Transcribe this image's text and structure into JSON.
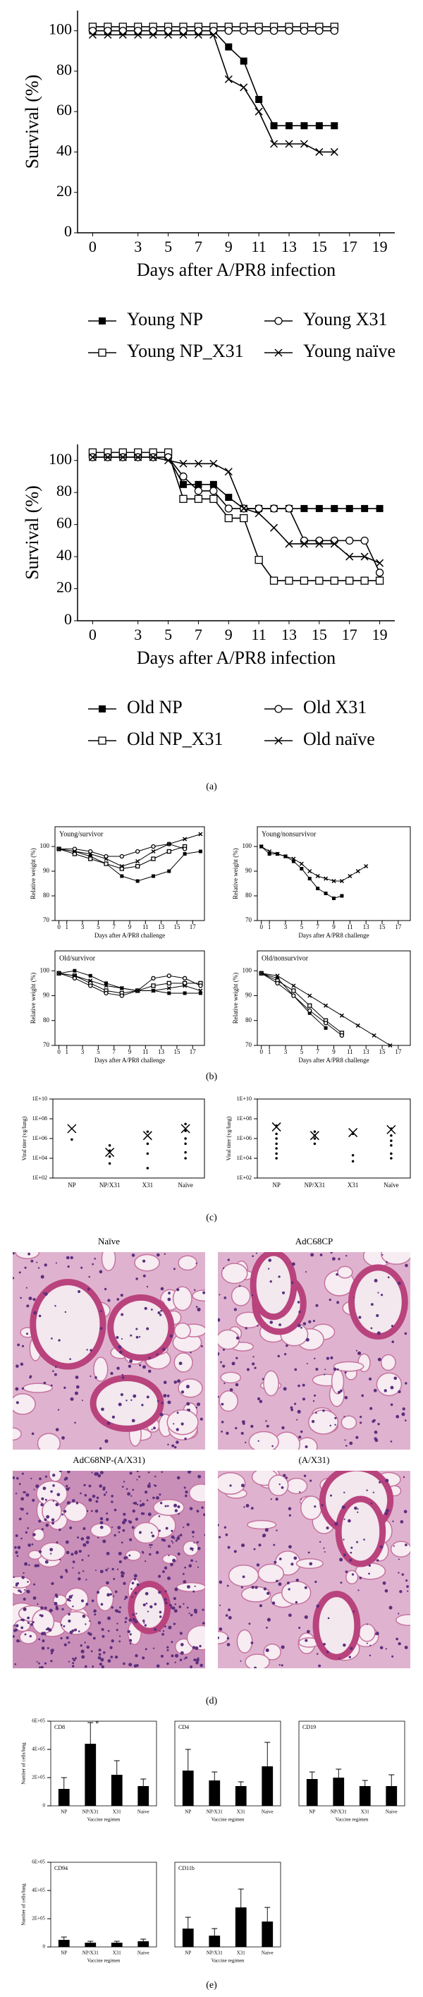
{
  "panel_labels": [
    "(a)",
    "(b)",
    "(c)",
    "(d)",
    "(e)"
  ],
  "micrographs": [
    "Naïve",
    "AdC68CP",
    "AdC68NP-(A/X31)",
    "(A/X31)"
  ],
  "chart_data": [
    {
      "type": "line",
      "xlabel": "Days after A/PR8 infection",
      "ylabel": "Survival (%)",
      "x": [
        0,
        1,
        2,
        3,
        4,
        5,
        6,
        7,
        8,
        9,
        10,
        11,
        12,
        13,
        14,
        15,
        16
      ],
      "xlim": [
        -1,
        20
      ],
      "xticks": [
        0,
        3,
        5,
        7,
        9,
        11,
        13,
        15,
        17,
        19
      ],
      "ylim": [
        0,
        110
      ],
      "yticks": [
        0,
        20,
        40,
        60,
        80,
        100
      ],
      "legend": "bottom",
      "series": [
        {
          "name": "Young NP",
          "marker": "square-filled",
          "color": "#000000",
          "values": [
            100,
            100,
            100,
            100,
            100,
            100,
            100,
            100,
            100,
            92,
            85,
            66,
            53,
            53,
            53,
            53,
            53
          ]
        },
        {
          "name": "Young NP_X31",
          "marker": "square-open",
          "color": "#000000",
          "values": [
            102,
            102,
            102,
            102,
            102,
            102,
            102,
            102,
            102,
            102,
            102,
            102,
            102,
            102,
            102,
            102,
            102
          ]
        },
        {
          "name": "Young X31",
          "marker": "circle",
          "color": "#000000",
          "values": [
            100,
            100,
            100,
            100,
            100,
            100,
            100,
            100,
            100,
            100,
            100,
            100,
            100,
            100,
            100,
            100,
            100
          ]
        },
        {
          "name": "Young naïve",
          "marker": "x",
          "color": "#000000",
          "values": [
            98,
            98,
            98,
            98,
            98,
            98,
            98,
            98,
            98,
            76,
            72,
            60,
            44,
            44,
            44,
            40,
            40
          ]
        }
      ]
    },
    {
      "type": "line",
      "xlabel": "Days after A/PR8 infection",
      "ylabel": "Survival (%)",
      "x": [
        0,
        1,
        2,
        3,
        4,
        5,
        6,
        7,
        8,
        9,
        10,
        11,
        12,
        13,
        14,
        15,
        16,
        17,
        18,
        19
      ],
      "xlim": [
        -1,
        20
      ],
      "xticks": [
        0,
        3,
        5,
        7,
        9,
        11,
        13,
        15,
        17,
        19
      ],
      "ylim": [
        0,
        110
      ],
      "yticks": [
        0,
        20,
        40,
        60,
        80,
        100
      ],
      "legend": "bottom",
      "series": [
        {
          "name": "Old NP",
          "marker": "square-filled",
          "color": "#000000",
          "values": [
            102,
            102,
            102,
            102,
            102,
            102,
            85,
            85,
            85,
            77,
            70,
            70,
            70,
            70,
            70,
            70,
            70,
            70,
            70,
            70
          ]
        },
        {
          "name": "Old NP_X31",
          "marker": "square-open",
          "color": "#000000",
          "values": [
            105,
            105,
            105,
            105,
            105,
            105,
            76,
            76,
            76,
            64,
            64,
            38,
            25,
            25,
            25,
            25,
            25,
            25,
            25,
            25
          ]
        },
        {
          "name": "Old X31",
          "marker": "circle",
          "color": "#000000",
          "values": [
            102,
            102,
            102,
            102,
            102,
            102,
            90,
            81,
            81,
            70,
            70,
            70,
            70,
            70,
            50,
            50,
            50,
            50,
            50,
            30
          ]
        },
        {
          "name": "Old naïve",
          "marker": "x",
          "color": "#000000",
          "values": [
            102,
            102,
            102,
            102,
            102,
            100,
            98,
            98,
            98,
            93,
            70,
            67,
            58,
            48,
            48,
            48,
            48,
            40,
            40,
            36
          ]
        }
      ]
    },
    {
      "type": "line",
      "title": "Young/survivor",
      "xlabel": "Days after A/PR8 challenge",
      "ylabel": "Relative weight (%)",
      "x": [
        0,
        2,
        4,
        6,
        8,
        10,
        12,
        14,
        16,
        18
      ],
      "xlim": [
        -0.5,
        18.5
      ],
      "xticks": [
        0,
        1,
        3,
        5,
        7,
        9,
        11,
        13,
        15,
        17
      ],
      "ylim": [
        70,
        108
      ],
      "yticks": [
        70,
        80,
        90,
        100
      ],
      "series": [
        {
          "marker": "square-filled",
          "color": "#000000",
          "values": [
            99,
            98,
            96,
            93,
            88,
            86,
            88,
            90,
            97,
            98
          ]
        },
        {
          "marker": "square-open",
          "color": "#000000",
          "values": [
            99,
            97,
            95,
            93,
            91,
            92,
            95,
            98,
            100,
            null
          ]
        },
        {
          "marker": "circle",
          "color": "#000000",
          "values": [
            99,
            99,
            98,
            96,
            96,
            98,
            100,
            101,
            99,
            null
          ]
        },
        {
          "marker": "x",
          "color": "#000000",
          "values": [
            99,
            98,
            97,
            95,
            92,
            94,
            98,
            101,
            103,
            105
          ]
        }
      ]
    },
    {
      "type": "line",
      "title": "Young/nonsurvivor",
      "xlabel": "Days after A/PR8 challenge",
      "ylabel": "Relative weight (%)",
      "x": [
        0,
        1,
        2,
        3,
        4,
        5,
        6,
        7,
        8,
        9,
        10,
        11,
        12,
        13
      ],
      "xlim": [
        -0.5,
        18.5
      ],
      "xticks": [
        0,
        1,
        3,
        5,
        7,
        9,
        11,
        13,
        15,
        17
      ],
      "ylim": [
        70,
        108
      ],
      "yticks": [
        70,
        80,
        90,
        100
      ],
      "series": [
        {
          "marker": "square-filled",
          "color": "#000000",
          "values": [
            100,
            97,
            97,
            96,
            94,
            91,
            87,
            83,
            81,
            79,
            80,
            null,
            null,
            null
          ]
        },
        {
          "marker": "x",
          "color": "#000000",
          "values": [
            100,
            98,
            97,
            96,
            95,
            93,
            90,
            88,
            87,
            86,
            86,
            88,
            90,
            92
          ]
        }
      ]
    },
    {
      "type": "line",
      "title": "Old/survivor",
      "xlabel": "Days after A/PR8 challenge",
      "ylabel": "Relative weight (%)",
      "x": [
        0,
        2,
        4,
        6,
        8,
        10,
        12,
        14,
        16,
        18
      ],
      "xlim": [
        -0.5,
        18.5
      ],
      "xticks": [
        0,
        1,
        3,
        5,
        7,
        9,
        11,
        13,
        15,
        17
      ],
      "ylim": [
        70,
        108
      ],
      "yticks": [
        70,
        80,
        90,
        100
      ],
      "series": [
        {
          "marker": "square-filled",
          "color": "#000000",
          "values": [
            99,
            100,
            98,
            95,
            93,
            92,
            92,
            91,
            91,
            91
          ]
        },
        {
          "marker": "square-open",
          "color": "#000000",
          "values": [
            99,
            98,
            95,
            92,
            91,
            92,
            94,
            95,
            95,
            95
          ]
        },
        {
          "marker": "circle",
          "color": "#000000",
          "values": [
            99,
            97,
            94,
            91,
            90,
            92,
            97,
            98,
            97,
            94
          ]
        },
        {
          "marker": "x",
          "color": "#000000",
          "values": [
            99,
            98,
            96,
            94,
            93,
            92,
            92,
            93,
            94,
            92
          ]
        }
      ]
    },
    {
      "type": "line",
      "title": "Old/nonsurvivor",
      "xlabel": "Days after A/PR8 challenge",
      "ylabel": "Relative weight (%)",
      "x": [
        0,
        2,
        4,
        6,
        8,
        10,
        12,
        14,
        16,
        18
      ],
      "xlim": [
        -0.5,
        18.5
      ],
      "xticks": [
        0,
        1,
        3,
        5,
        7,
        9,
        11,
        13,
        15,
        17
      ],
      "ylim": [
        70,
        108
      ],
      "yticks": [
        70,
        80,
        90,
        100
      ],
      "series": [
        {
          "marker": "square-filled",
          "color": "#000000",
          "values": [
            99,
            97,
            90,
            83,
            77,
            null,
            null,
            null,
            null,
            null
          ]
        },
        {
          "marker": "square-open",
          "color": "#000000",
          "values": [
            99,
            96,
            92,
            86,
            80,
            75,
            null,
            null,
            null,
            null
          ]
        },
        {
          "marker": "circle",
          "color": "#000000",
          "values": [
            99,
            95,
            90,
            84,
            79,
            74,
            null,
            null,
            null,
            null
          ]
        },
        {
          "marker": "x",
          "color": "#000000",
          "values": [
            99,
            98,
            94,
            90,
            86,
            82,
            78,
            74,
            70,
            null
          ]
        }
      ]
    },
    {
      "type": "scatter",
      "log": true,
      "ylabel": "Viral titer (vg/lung)",
      "categories": [
        "NP",
        "NP/X31",
        "X31",
        "Naïve"
      ],
      "ylim": [
        100,
        10000000000
      ],
      "yticks": [
        {
          "value": 100,
          "label": "1E+02"
        },
        {
          "value": 10000,
          "label": "1E+04"
        },
        {
          "value": 1000000,
          "label": "1E+06"
        },
        {
          "value": 100000000,
          "label": "1E+08"
        },
        {
          "value": 10000000000,
          "label": "1E+10"
        }
      ],
      "series": [
        {
          "marker": "dot",
          "color": "#000000",
          "x": [
            "NP",
            "NP/X31",
            "NP/X31",
            "NP/X31",
            "NP/X31",
            "X31",
            "X31",
            "X31",
            "X31",
            "Naïve",
            "Naïve",
            "Naïve",
            "Naïve",
            "Naïve",
            "Naïve"
          ],
          "values": [
            800000,
            200000,
            60000,
            15000,
            3000,
            5000000,
            300000,
            30000,
            1000,
            30000000,
            6000000,
            1000000,
            300000,
            40000,
            10000
          ]
        },
        {
          "marker": "x",
          "color": "#000000",
          "x": [
            "NP",
            "NP/X31",
            "X31",
            "Naïve"
          ],
          "values": [
            10000000,
            40000,
            2000000,
            10000000
          ]
        }
      ]
    },
    {
      "type": "scatter",
      "log": true,
      "ylabel": "Viral titer (vg/lung)",
      "categories": [
        "NP",
        "NP/X31",
        "X31",
        "Naïve"
      ],
      "ylim": [
        100,
        10000000000
      ],
      "yticks": [
        {
          "value": 100,
          "label": "1E+02"
        },
        {
          "value": 10000,
          "label": "1E+04"
        },
        {
          "value": 1000000,
          "label": "1E+06"
        },
        {
          "value": 100000000,
          "label": "1E+08"
        },
        {
          "value": 10000000000,
          "label": "1E+10"
        }
      ],
      "series": [
        {
          "marker": "dot",
          "color": "#000000",
          "x": [
            "NP",
            "NP",
            "NP",
            "NP",
            "NP",
            "NP",
            "NP",
            "NP/X31",
            "NP/X31",
            "NP/X31",
            "NP/X31",
            "X31",
            "X31",
            "X31",
            "Naïve",
            "Naïve",
            "Naïve",
            "Naïve",
            "Naïve",
            "Naïve"
          ],
          "values": [
            20000000,
            3000000,
            1000000,
            300000,
            100000,
            30000,
            10000,
            5000000,
            2000000,
            1000000,
            300000,
            3000000,
            20000,
            5000,
            10000000,
            2000000,
            600000,
            200000,
            30000,
            10000
          ]
        },
        {
          "marker": "x",
          "color": "#000000",
          "x": [
            "NP",
            "NP/X31",
            "X31",
            "Naïve"
          ],
          "values": [
            15000000,
            2000000,
            4000000,
            8000000
          ]
        }
      ]
    },
    {
      "type": "bar",
      "title": "CD8",
      "annotation": "*",
      "xlabel": "Vaccine regimen",
      "ylabel": "Number of cells/lung",
      "categories": [
        "NP",
        "NP/X31",
        "X31",
        "Naive"
      ],
      "color": "#000000",
      "values": [
        120000,
        440000,
        220000,
        140000
      ],
      "errors": [
        80000,
        150000,
        100000,
        50000
      ],
      "ylim": [
        0,
        600000
      ],
      "yticks": [
        {
          "value": 0,
          "label": "0"
        },
        {
          "value": 200000,
          "label": "2E+05"
        },
        {
          "value": 400000,
          "label": "4E+05"
        },
        {
          "value": 600000,
          "label": "6E+05"
        }
      ]
    },
    {
      "type": "bar",
      "title": "CD4",
      "xlabel": "Vaccine regimen",
      "categories": [
        "NP",
        "NP/X31",
        "X31",
        "Naive"
      ],
      "color": "#000000",
      "values": [
        250000,
        180000,
        140000,
        280000
      ],
      "errors": [
        150000,
        60000,
        30000,
        170000
      ],
      "ylim": [
        0,
        600000
      ]
    },
    {
      "type": "bar",
      "title": "CD19",
      "xlabel": "Vaccine regimen",
      "categories": [
        "NP",
        "NP/X31",
        "X31",
        "Naive"
      ],
      "color": "#000000",
      "values": [
        190000,
        200000,
        140000,
        140000
      ],
      "errors": [
        50000,
        60000,
        40000,
        80000
      ],
      "ylim": [
        0,
        600000
      ]
    },
    {
      "type": "bar",
      "title": "CD94",
      "xlabel": "Vaccine regimen",
      "ylabel": "Number of cells/lung",
      "categories": [
        "NP",
        "NP/X31",
        "X31",
        "Naive"
      ],
      "color": "#000000",
      "values": [
        50000,
        30000,
        30000,
        40000
      ],
      "errors": [
        20000,
        10000,
        10000,
        15000
      ],
      "ylim": [
        0,
        600000
      ],
      "yticks": [
        {
          "value": 0,
          "label": "0"
        },
        {
          "value": 200000,
          "label": "2E+05"
        },
        {
          "value": 400000,
          "label": "4E+05"
        },
        {
          "value": 600000,
          "label": "6E+05"
        }
      ]
    },
    {
      "type": "bar",
      "title": "CD11b",
      "xlabel": "Vaccine regimen",
      "categories": [
        "NP",
        "NP/X31",
        "X31",
        "Naive"
      ],
      "color": "#000000",
      "values": [
        130000,
        80000,
        280000,
        180000
      ],
      "errors": [
        80000,
        50000,
        130000,
        100000
      ],
      "ylim": [
        0,
        600000
      ]
    }
  ]
}
